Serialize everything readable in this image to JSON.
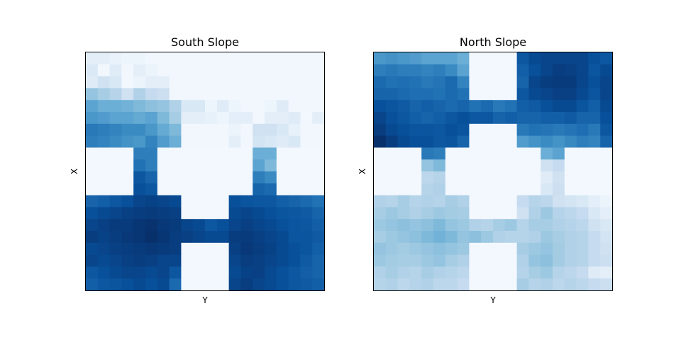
{
  "chart_data": [
    {
      "type": "heatmap",
      "title": "South Slope",
      "xlabel": "Y",
      "ylabel": "X",
      "colormap": "Blues",
      "value_range": [
        0,
        1
      ],
      "grid": false,
      "x_ticks": [],
      "y_ticks": [],
      "rows": 20,
      "cols": 20,
      "values": [
        [
          0.1,
          0.1,
          0.07,
          0.05,
          0.05,
          0.03,
          0.03,
          0.03,
          0.03,
          0.03,
          0.03,
          0.03,
          0.03,
          0.03,
          0.03,
          0.03,
          0.03,
          0.03,
          0.03,
          0.03
        ],
        [
          0.14,
          0.03,
          0.12,
          0.03,
          0.1,
          0.06,
          0.03,
          0.03,
          0.03,
          0.03,
          0.03,
          0.03,
          0.03,
          0.03,
          0.03,
          0.03,
          0.03,
          0.03,
          0.03,
          0.03
        ],
        [
          0.12,
          0.2,
          0.15,
          0.03,
          0.06,
          0.1,
          0.1,
          0.03,
          0.03,
          0.03,
          0.03,
          0.03,
          0.03,
          0.03,
          0.03,
          0.03,
          0.03,
          0.03,
          0.03,
          0.03
        ],
        [
          0.4,
          0.35,
          0.3,
          0.2,
          0.32,
          0.25,
          0.22,
          0.03,
          0.03,
          0.03,
          0.03,
          0.03,
          0.03,
          0.03,
          0.03,
          0.03,
          0.03,
          0.03,
          0.03,
          0.03
        ],
        [
          0.55,
          0.5,
          0.5,
          0.48,
          0.45,
          0.42,
          0.4,
          0.32,
          0.15,
          0.15,
          0.05,
          0.12,
          0.05,
          0.03,
          0.03,
          0.05,
          0.12,
          0.03,
          0.03,
          0.03
        ],
        [
          0.6,
          0.58,
          0.55,
          0.55,
          0.52,
          0.55,
          0.45,
          0.35,
          0.1,
          0.1,
          0.08,
          0.05,
          0.1,
          0.1,
          0.03,
          0.1,
          0.1,
          0.12,
          0.03,
          0.1
        ],
        [
          0.72,
          0.7,
          0.68,
          0.65,
          0.65,
          0.6,
          0.52,
          0.45,
          0.03,
          0.03,
          0.03,
          0.03,
          0.06,
          0.03,
          0.2,
          0.2,
          0.15,
          0.08,
          0.03,
          0.03
        ],
        [
          0.7,
          0.68,
          0.65,
          0.62,
          0.6,
          0.68,
          0.58,
          0.5,
          0.03,
          0.03,
          0.03,
          0.03,
          0.1,
          0.03,
          0.18,
          0.15,
          0.12,
          0.15,
          0.03,
          0.03
        ],
        [
          0.02,
          0.02,
          0.02,
          0.02,
          0.7,
          0.7,
          0.02,
          0.02,
          0.02,
          0.02,
          0.02,
          0.02,
          0.02,
          0.02,
          0.5,
          0.5,
          0.02,
          0.02,
          0.02,
          0.02
        ],
        [
          0.02,
          0.02,
          0.02,
          0.02,
          0.75,
          0.7,
          0.02,
          0.02,
          0.02,
          0.02,
          0.02,
          0.02,
          0.02,
          0.02,
          0.55,
          0.45,
          0.02,
          0.02,
          0.02,
          0.02
        ],
        [
          0.02,
          0.02,
          0.02,
          0.02,
          0.85,
          0.8,
          0.02,
          0.02,
          0.02,
          0.02,
          0.02,
          0.02,
          0.02,
          0.02,
          0.7,
          0.65,
          0.02,
          0.02,
          0.02,
          0.02
        ],
        [
          0.02,
          0.02,
          0.02,
          0.02,
          0.88,
          0.85,
          0.02,
          0.02,
          0.02,
          0.02,
          0.02,
          0.02,
          0.02,
          0.02,
          0.8,
          0.78,
          0.02,
          0.02,
          0.02,
          0.02
        ],
        [
          0.8,
          0.82,
          0.85,
          0.88,
          0.92,
          0.93,
          0.92,
          0.9,
          0.02,
          0.02,
          0.02,
          0.02,
          0.88,
          0.86,
          0.85,
          0.85,
          0.82,
          0.8,
          0.78,
          0.75
        ],
        [
          0.88,
          0.9,
          0.92,
          0.94,
          0.95,
          0.96,
          0.95,
          0.94,
          0.02,
          0.02,
          0.02,
          0.02,
          0.9,
          0.92,
          0.9,
          0.88,
          0.86,
          0.85,
          0.84,
          0.8
        ],
        [
          0.92,
          0.94,
          0.96,
          0.96,
          0.98,
          0.99,
          0.97,
          0.96,
          0.92,
          0.9,
          0.85,
          0.88,
          0.92,
          0.94,
          0.92,
          0.9,
          0.88,
          0.86,
          0.85,
          0.82
        ],
        [
          0.95,
          0.93,
          0.95,
          0.97,
          0.98,
          1.0,
          0.98,
          0.95,
          0.94,
          0.92,
          0.9,
          0.9,
          0.95,
          0.96,
          0.94,
          0.92,
          0.9,
          0.86,
          0.86,
          0.84
        ],
        [
          0.9,
          0.92,
          0.94,
          0.95,
          0.96,
          0.97,
          0.96,
          0.95,
          0.02,
          0.02,
          0.02,
          0.02,
          0.94,
          0.97,
          0.95,
          0.93,
          0.9,
          0.88,
          0.86,
          0.82
        ],
        [
          0.92,
          0.9,
          0.92,
          0.94,
          0.95,
          0.94,
          0.92,
          0.92,
          0.02,
          0.02,
          0.02,
          0.02,
          0.92,
          0.95,
          0.94,
          0.92,
          0.9,
          0.88,
          0.84,
          0.8
        ],
        [
          0.85,
          0.88,
          0.9,
          0.92,
          0.92,
          0.9,
          0.92,
          0.85,
          0.02,
          0.02,
          0.02,
          0.02,
          0.9,
          0.93,
          0.94,
          0.9,
          0.88,
          0.85,
          0.82,
          0.8
        ],
        [
          0.82,
          0.85,
          0.86,
          0.88,
          0.9,
          0.88,
          0.9,
          0.78,
          0.02,
          0.02,
          0.02,
          0.02,
          0.92,
          0.95,
          0.92,
          0.9,
          0.88,
          0.85,
          0.84,
          0.82
        ]
      ]
    },
    {
      "type": "heatmap",
      "title": "North Slope",
      "xlabel": "Y",
      "ylabel": "X",
      "colormap": "Blues",
      "value_range": [
        0,
        1
      ],
      "grid": false,
      "x_ticks": [],
      "y_ticks": [],
      "rows": 20,
      "cols": 20,
      "values": [
        [
          0.6,
          0.62,
          0.6,
          0.58,
          0.55,
          0.55,
          0.55,
          0.5,
          0.02,
          0.02,
          0.02,
          0.02,
          0.85,
          0.9,
          0.92,
          0.92,
          0.92,
          0.92,
          0.88,
          0.85
        ],
        [
          0.7,
          0.72,
          0.7,
          0.7,
          0.68,
          0.7,
          0.65,
          0.55,
          0.02,
          0.02,
          0.02,
          0.02,
          0.82,
          0.88,
          0.92,
          0.95,
          0.94,
          0.92,
          0.86,
          0.9
        ],
        [
          0.78,
          0.75,
          0.76,
          0.75,
          0.72,
          0.74,
          0.78,
          0.68,
          0.02,
          0.02,
          0.02,
          0.02,
          0.8,
          0.92,
          0.95,
          0.96,
          0.96,
          0.92,
          0.88,
          0.92
        ],
        [
          0.8,
          0.8,
          0.78,
          0.76,
          0.76,
          0.75,
          0.78,
          0.75,
          0.02,
          0.02,
          0.02,
          0.02,
          0.85,
          0.9,
          0.92,
          0.94,
          0.94,
          0.9,
          0.86,
          0.92
        ],
        [
          0.88,
          0.86,
          0.84,
          0.8,
          0.82,
          0.8,
          0.78,
          0.8,
          0.75,
          0.78,
          0.72,
          0.75,
          0.82,
          0.84,
          0.88,
          0.9,
          0.9,
          0.86,
          0.82,
          0.9
        ],
        [
          0.92,
          0.88,
          0.85,
          0.82,
          0.8,
          0.82,
          0.85,
          0.88,
          0.85,
          0.85,
          0.8,
          0.82,
          0.8,
          0.8,
          0.82,
          0.82,
          0.84,
          0.8,
          0.8,
          0.88
        ],
        [
          0.95,
          0.9,
          0.88,
          0.86,
          0.86,
          0.85,
          0.88,
          0.86,
          0.02,
          0.02,
          0.02,
          0.02,
          0.72,
          0.75,
          0.74,
          0.72,
          0.74,
          0.76,
          0.72,
          0.85
        ],
        [
          1.0,
          0.95,
          0.9,
          0.88,
          0.88,
          0.85,
          0.86,
          0.8,
          0.02,
          0.02,
          0.02,
          0.02,
          0.58,
          0.62,
          0.65,
          0.62,
          0.66,
          0.7,
          0.68,
          0.8
        ],
        [
          0.02,
          0.02,
          0.02,
          0.02,
          0.72,
          0.7,
          0.02,
          0.02,
          0.02,
          0.02,
          0.02,
          0.02,
          0.02,
          0.02,
          0.5,
          0.55,
          0.02,
          0.02,
          0.02,
          0.02
        ],
        [
          0.02,
          0.02,
          0.02,
          0.02,
          0.4,
          0.45,
          0.02,
          0.02,
          0.02,
          0.02,
          0.02,
          0.02,
          0.02,
          0.02,
          0.2,
          0.25,
          0.02,
          0.02,
          0.02,
          0.02
        ],
        [
          0.02,
          0.02,
          0.02,
          0.02,
          0.28,
          0.3,
          0.02,
          0.02,
          0.02,
          0.02,
          0.02,
          0.02,
          0.02,
          0.02,
          0.12,
          0.2,
          0.02,
          0.02,
          0.02,
          0.02
        ],
        [
          0.02,
          0.02,
          0.02,
          0.02,
          0.3,
          0.32,
          0.02,
          0.02,
          0.02,
          0.02,
          0.02,
          0.02,
          0.02,
          0.02,
          0.15,
          0.22,
          0.02,
          0.02,
          0.02,
          0.02
        ],
        [
          0.32,
          0.3,
          0.35,
          0.3,
          0.32,
          0.3,
          0.35,
          0.32,
          0.02,
          0.02,
          0.02,
          0.02,
          0.25,
          0.3,
          0.28,
          0.2,
          0.18,
          0.15,
          0.1,
          0.06
        ],
        [
          0.35,
          0.38,
          0.35,
          0.32,
          0.35,
          0.38,
          0.36,
          0.35,
          0.02,
          0.02,
          0.02,
          0.02,
          0.2,
          0.32,
          0.38,
          0.3,
          0.28,
          0.25,
          0.15,
          0.1
        ],
        [
          0.38,
          0.4,
          0.42,
          0.4,
          0.42,
          0.45,
          0.4,
          0.38,
          0.32,
          0.3,
          0.35,
          0.38,
          0.3,
          0.35,
          0.35,
          0.32,
          0.3,
          0.28,
          0.2,
          0.15
        ],
        [
          0.35,
          0.38,
          0.4,
          0.42,
          0.45,
          0.48,
          0.45,
          0.4,
          0.42,
          0.38,
          0.32,
          0.3,
          0.3,
          0.32,
          0.38,
          0.35,
          0.32,
          0.3,
          0.25,
          0.18
        ],
        [
          0.4,
          0.38,
          0.36,
          0.38,
          0.4,
          0.42,
          0.4,
          0.38,
          0.02,
          0.02,
          0.02,
          0.02,
          0.35,
          0.38,
          0.4,
          0.36,
          0.32,
          0.3,
          0.25,
          0.2
        ],
        [
          0.38,
          0.36,
          0.35,
          0.35,
          0.38,
          0.4,
          0.35,
          0.32,
          0.02,
          0.02,
          0.02,
          0.02,
          0.32,
          0.4,
          0.42,
          0.36,
          0.32,
          0.3,
          0.25,
          0.22
        ],
        [
          0.32,
          0.35,
          0.32,
          0.3,
          0.35,
          0.32,
          0.3,
          0.28,
          0.02,
          0.02,
          0.02,
          0.02,
          0.3,
          0.35,
          0.38,
          0.3,
          0.28,
          0.25,
          0.12,
          0.1
        ],
        [
          0.3,
          0.32,
          0.28,
          0.3,
          0.32,
          0.28,
          0.28,
          0.25,
          0.02,
          0.02,
          0.02,
          0.02,
          0.35,
          0.3,
          0.32,
          0.28,
          0.3,
          0.28,
          0.25,
          0.22
        ]
      ]
    }
  ]
}
